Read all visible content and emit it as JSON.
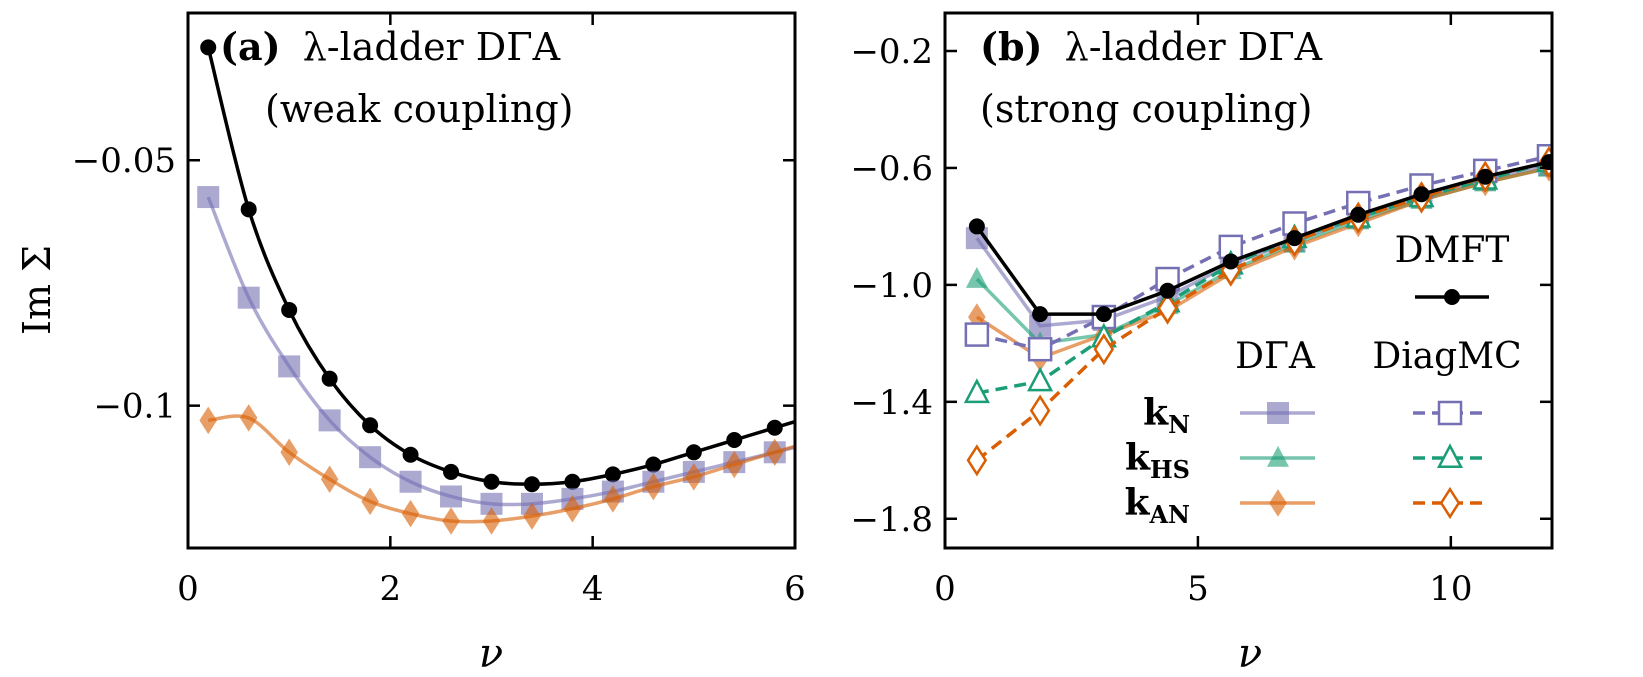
{
  "colors": {
    "dmft": "#000000",
    "kN": "#7570b3",
    "kHS": "#1b9e77",
    "kAN": "#d95f02"
  },
  "ylabel": "Im Σ",
  "chart_data": [
    {
      "type": "line",
      "panel_tag": "(a)",
      "title_line1": "λ-ladder DΓA",
      "title_line2": "(weak coupling)",
      "xlabel": "ν",
      "ylabel": "Im Σ",
      "xlim": [
        0,
        6
      ],
      "ylim": [
        -0.129,
        -0.02
      ],
      "xticks": [
        0,
        2,
        4,
        6
      ],
      "xtick_labels": [
        "0",
        "2",
        "4",
        "6"
      ],
      "yticks": [
        -0.05,
        -0.1
      ],
      "ytick_labels": [
        "−0.05",
        "−0.1"
      ],
      "series": [
        {
          "name": "DMFT",
          "key": "dmft",
          "style": "line-circle",
          "x": [
            0.2,
            0.6,
            1.0,
            1.4,
            1.8,
            2.2,
            2.6,
            3.0,
            3.4,
            3.8,
            4.2,
            4.6,
            5.0,
            5.4,
            5.8
          ],
          "values": [
            -0.027,
            -0.06,
            -0.0805,
            -0.0945,
            -0.104,
            -0.11,
            -0.1135,
            -0.1155,
            -0.116,
            -0.1155,
            -0.114,
            -0.112,
            -0.1095,
            -0.107,
            -0.1045
          ]
        },
        {
          "name": "kN DΓA",
          "key": "kN",
          "style": "line-square",
          "x": [
            0.2,
            0.6,
            1.0,
            1.4,
            1.8,
            2.2,
            2.6,
            3.0,
            3.4,
            3.8,
            4.2,
            4.6,
            5.0,
            5.4,
            5.8
          ],
          "values": [
            -0.0575,
            -0.078,
            -0.092,
            -0.103,
            -0.1105,
            -0.1155,
            -0.1185,
            -0.12,
            -0.12,
            -0.119,
            -0.1175,
            -0.1155,
            -0.1135,
            -0.1115,
            -0.1095
          ]
        },
        {
          "name": "kAN DΓA",
          "key": "kAN",
          "style": "line-diamond",
          "x": [
            0.2,
            0.6,
            1.0,
            1.4,
            1.8,
            2.2,
            2.6,
            3.0,
            3.4,
            3.8,
            4.2,
            4.6,
            5.0,
            5.4,
            5.8
          ],
          "values": [
            -0.103,
            -0.1025,
            -0.1095,
            -0.115,
            -0.1195,
            -0.122,
            -0.1235,
            -0.1235,
            -0.1225,
            -0.121,
            -0.119,
            -0.1165,
            -0.1145,
            -0.112,
            -0.1095
          ]
        }
      ]
    },
    {
      "type": "line",
      "panel_tag": "(b)",
      "title_line1": "λ-ladder DΓA",
      "title_line2": "(strong coupling)",
      "xlabel": "ν",
      "xlim": [
        0,
        12
      ],
      "ylim": [
        -1.9,
        -0.07
      ],
      "xticks": [
        0,
        5,
        10
      ],
      "xtick_labels": [
        "0",
        "5",
        "10"
      ],
      "yticks": [
        -0.2,
        -0.6,
        -1.0,
        -1.4,
        -1.8
      ],
      "ytick_labels": [
        "−0.2",
        "−0.6",
        "−1.0",
        "−1.4",
        "−1.8"
      ],
      "series": [
        {
          "name": "kN DΓA",
          "key": "kN",
          "style": "line-square",
          "x": [
            0.63,
            1.88,
            3.14,
            4.4,
            5.65,
            6.91,
            8.17,
            9.42,
            10.68,
            11.94
          ],
          "values": [
            -0.84,
            -1.14,
            -1.12,
            -1.04,
            -0.93,
            -0.85,
            -0.77,
            -0.7,
            -0.64,
            -0.59
          ]
        },
        {
          "name": "kHS DΓA",
          "key": "kHS",
          "style": "line-triangle",
          "x": [
            0.63,
            1.88,
            3.14,
            4.4,
            5.65,
            6.91,
            8.17,
            9.42,
            10.68,
            11.94
          ],
          "values": [
            -0.98,
            -1.2,
            -1.17,
            -1.07,
            -0.95,
            -0.86,
            -0.78,
            -0.71,
            -0.65,
            -0.6
          ]
        },
        {
          "name": "kAN DΓA",
          "key": "kAN",
          "style": "line-diamond",
          "x": [
            0.63,
            1.88,
            3.14,
            4.4,
            5.65,
            6.91,
            8.17,
            9.42,
            10.68,
            11.94
          ],
          "values": [
            -1.11,
            -1.25,
            -1.17,
            -1.09,
            -0.96,
            -0.87,
            -0.79,
            -0.71,
            -0.65,
            -0.6
          ]
        },
        {
          "name": "kN DiagMC",
          "key": "kN",
          "style": "dash-open-square",
          "x": [
            0.63,
            1.88,
            3.14,
            4.4,
            5.65,
            6.91,
            8.17,
            9.42,
            10.68,
            11.94
          ],
          "values": [
            -1.17,
            -1.22,
            -1.11,
            -0.98,
            -0.87,
            -0.79,
            -0.72,
            -0.66,
            -0.61,
            -0.56
          ]
        },
        {
          "name": "kHS DiagMC",
          "key": "kHS",
          "style": "dash-open-triangle",
          "x": [
            0.63,
            1.88,
            3.14,
            4.4,
            5.65,
            6.91,
            8.17,
            9.42,
            10.68,
            11.94
          ],
          "values": [
            -1.37,
            -1.33,
            -1.18,
            -1.06,
            -0.93,
            -0.84,
            -0.77,
            -0.7,
            -0.64,
            -0.58
          ]
        },
        {
          "name": "kAN DiagMC",
          "key": "kAN",
          "style": "dash-open-diamond",
          "x": [
            0.63,
            1.88,
            3.14,
            4.4,
            5.65,
            6.91,
            8.17,
            9.42,
            10.68,
            11.94
          ],
          "values": [
            -1.6,
            -1.43,
            -1.22,
            -1.08,
            -0.95,
            -0.85,
            -0.77,
            -0.7,
            -0.63,
            -0.58
          ]
        },
        {
          "name": "DMFT",
          "key": "dmft",
          "style": "line-circle",
          "x": [
            0.63,
            1.88,
            3.14,
            4.4,
            5.65,
            6.91,
            8.17,
            9.42,
            10.68,
            11.94
          ],
          "values": [
            -0.8,
            -1.1,
            -1.1,
            -1.02,
            -0.92,
            -0.84,
            -0.76,
            -0.69,
            -0.63,
            -0.58
          ]
        }
      ],
      "legend": {
        "dmft_label": "DMFT",
        "col_dga": "DΓA",
        "col_diagmc": "DiagMC",
        "rows": [
          {
            "k": "k",
            "sub": "N",
            "key": "kN",
            "marker": "square"
          },
          {
            "k": "k",
            "sub": "HS",
            "key": "kHS",
            "marker": "triangle"
          },
          {
            "k": "k",
            "sub": "AN",
            "key": "kAN",
            "marker": "diamond"
          }
        ]
      }
    }
  ]
}
